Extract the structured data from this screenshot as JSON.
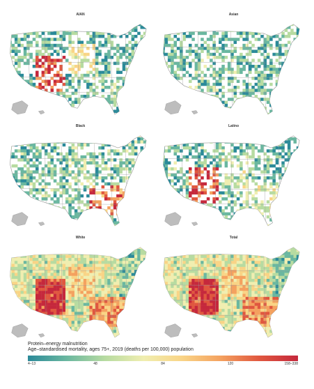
{
  "panels": [
    {
      "id": "aian",
      "title": "AIAN",
      "profile": {
        "sw": 0.85,
        "mw": 0.45,
        "south": 0.25,
        "east": 0.15,
        "base": 0.2
      }
    },
    {
      "id": "asian",
      "title": "Asian",
      "profile": {
        "sw": 0.25,
        "mw": 0.25,
        "south": 0.2,
        "east": 0.18,
        "base": 0.2
      }
    },
    {
      "id": "black",
      "title": "Black",
      "profile": {
        "sw": 0.25,
        "mw": 0.3,
        "south": 0.75,
        "east": 0.25,
        "base": 0.22
      }
    },
    {
      "id": "latino",
      "title": "Latino",
      "profile": {
        "sw": 0.85,
        "mw": 0.35,
        "south": 0.4,
        "east": 0.15,
        "base": 0.22
      }
    },
    {
      "id": "white",
      "title": "White",
      "profile": {
        "sw": 0.9,
        "mw": 0.55,
        "south": 0.7,
        "east": 0.25,
        "base": 0.4
      }
    },
    {
      "id": "total",
      "title": "Total",
      "profile": {
        "sw": 0.9,
        "mw": 0.55,
        "south": 0.7,
        "east": 0.25,
        "base": 0.4
      }
    }
  ],
  "legend": {
    "title_line1": "Protein–energy malnutrition",
    "title_line2": "Age–standardised mortality, ages 75+, 2019 (deaths per 100,000) population",
    "ticks": [
      {
        "label": "4–13",
        "pos": 0.0
      },
      {
        "label": "48",
        "pos": 0.25
      },
      {
        "label": "84",
        "pos": 0.5
      },
      {
        "label": "120",
        "pos": 0.75
      },
      {
        "label": "158–338",
        "pos": 1.0
      }
    ],
    "colors": [
      "#2b8a99",
      "#6ab7a0",
      "#b7dba1",
      "#f0eeb0",
      "#f9d486",
      "#f4a15f",
      "#e0573f",
      "#c5283c"
    ],
    "no_data_color": "#bdbdbd"
  }
}
